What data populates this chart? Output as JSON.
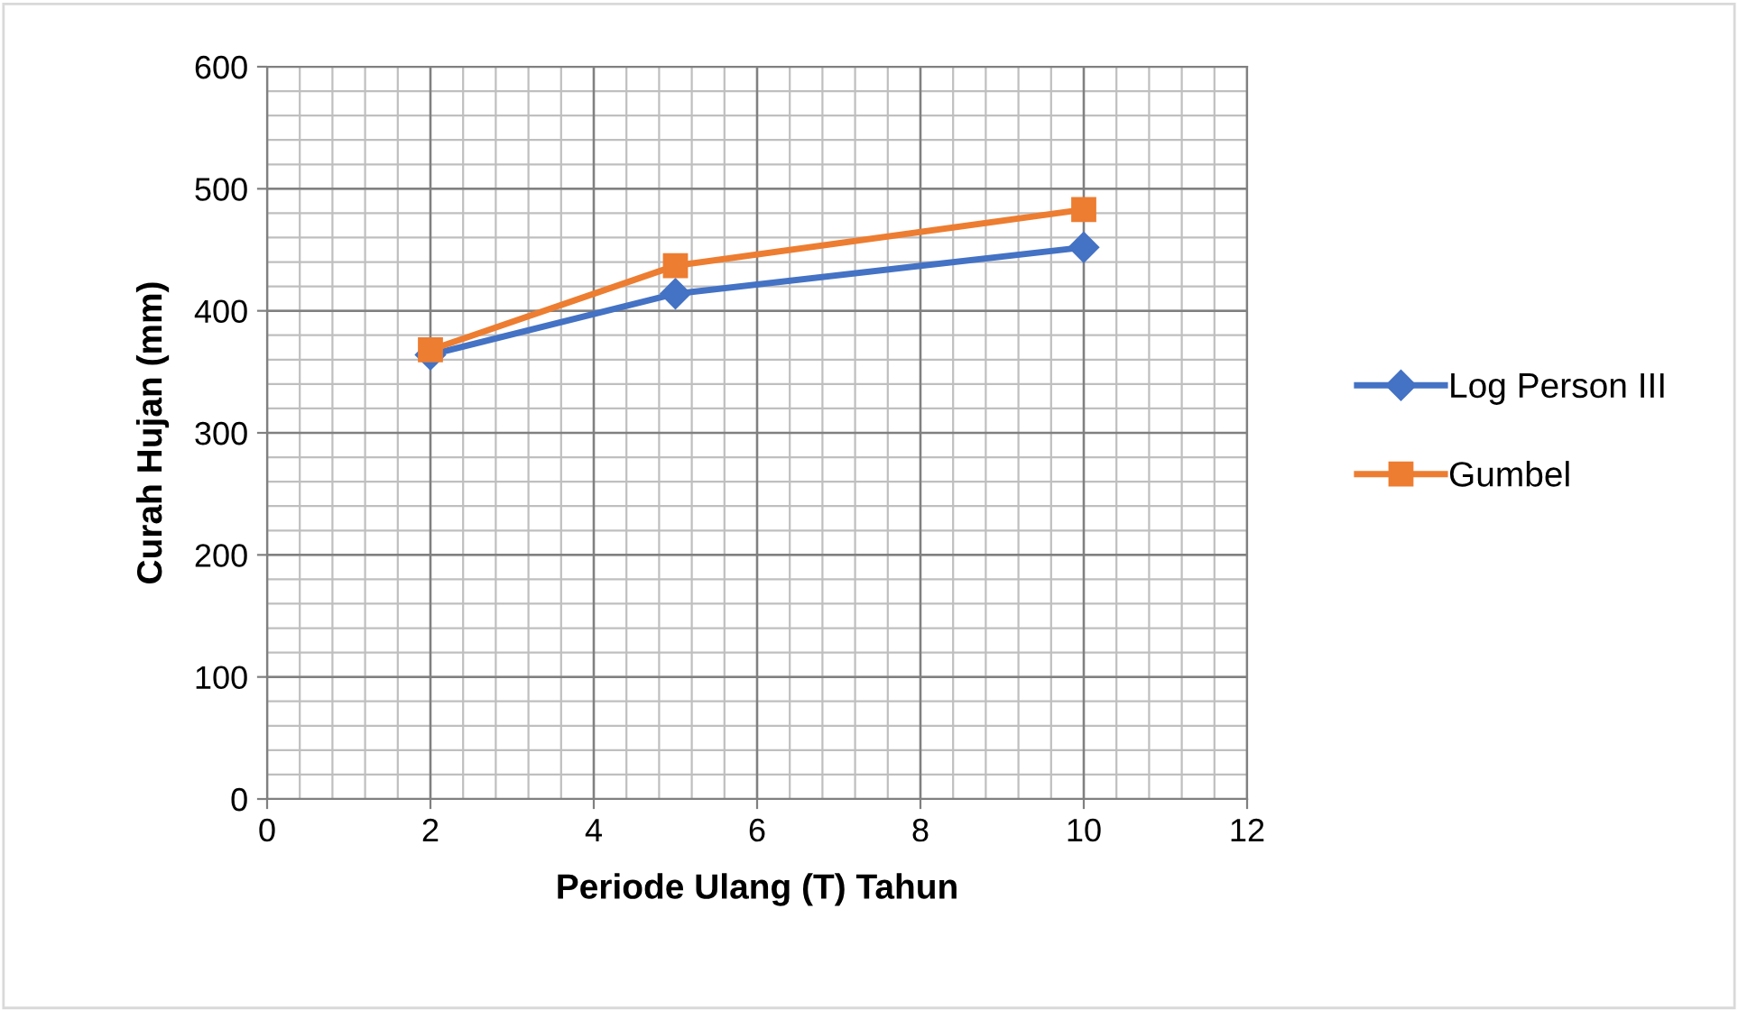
{
  "chart_data": {
    "type": "line",
    "xlabel": "Periode Ulang (T) Tahun",
    "ylabel": "Curah Hujan (mm)",
    "x": [
      2,
      5,
      10
    ],
    "series": [
      {
        "name": "Log Person III",
        "color": "#4472c4",
        "values": [
          364,
          414,
          452
        ],
        "marker": "diamond"
      },
      {
        "name": "Gumbel",
        "color": "#ed7d31",
        "values": [
          368,
          437,
          483
        ],
        "marker": "square"
      }
    ],
    "xlim": [
      0,
      12
    ],
    "xticks": [
      0,
      2,
      4,
      6,
      8,
      10,
      12
    ],
    "ylim": [
      0,
      600
    ],
    "yticks": [
      0,
      100,
      200,
      300,
      400,
      500,
      600
    ],
    "grid": true,
    "legend": "right",
    "line_style": "solid"
  }
}
